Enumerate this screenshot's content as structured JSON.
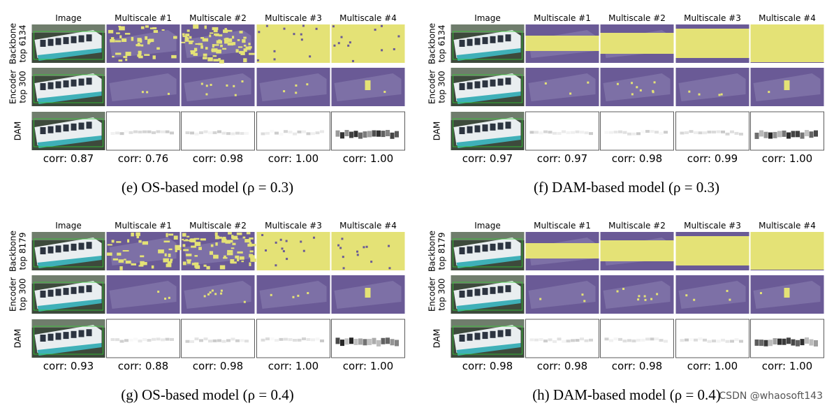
{
  "panels": [
    {
      "caption": "(e) OS-based model (ρ = 0.3)",
      "columns": [
        "Image",
        "Multiscale #1",
        "Multiscale #2",
        "Multiscale #3",
        "Multiscale #4"
      ],
      "rows": [
        {
          "label": [
            "Backbone",
            "top 6134"
          ]
        },
        {
          "label": [
            "Encoder",
            "top 300"
          ]
        },
        {
          "label": [
            "DAM"
          ]
        }
      ],
      "corr": [
        "corr: 0.87",
        "corr: 0.76",
        "corr: 0.98",
        "corr: 1.00",
        "corr: 1.00"
      ]
    },
    {
      "caption": "(f) DAM-based model (ρ = 0.3)",
      "columns": [
        "Image",
        "Multiscale #1",
        "Multiscale #2",
        "Multiscale #3",
        "Multiscale #4"
      ],
      "rows": [
        {
          "label": [
            "Backbone",
            "top 6134"
          ]
        },
        {
          "label": [
            "Encoder",
            "top 300"
          ]
        },
        {
          "label": [
            "DAM"
          ]
        }
      ],
      "corr": [
        "corr: 0.97",
        "corr: 0.97",
        "corr: 0.98",
        "corr: 0.99",
        "corr: 1.00"
      ]
    },
    {
      "caption": "(g) OS-based model (ρ = 0.4)",
      "columns": [
        "Image",
        "Multiscale #1",
        "Multiscale #2",
        "Multiscale #3",
        "Multiscale #4"
      ],
      "rows": [
        {
          "label": [
            "Backbone",
            "top 8179"
          ]
        },
        {
          "label": [
            "Encoder",
            "top 300"
          ]
        },
        {
          "label": [
            "DAM"
          ]
        }
      ],
      "corr": [
        "corr: 0.93",
        "corr: 0.88",
        "corr: 0.98",
        "corr: 1.00",
        "corr: 1.00"
      ]
    },
    {
      "caption": "(h) DAM-based model (ρ = 0.4)",
      "columns": [
        "Image",
        "Multiscale #1",
        "Multiscale #2",
        "Multiscale #3",
        "Multiscale #4"
      ],
      "rows": [
        {
          "label": [
            "Backbone",
            "top 8179"
          ]
        },
        {
          "label": [
            "Encoder",
            "top 300"
          ]
        },
        {
          "label": [
            "DAM"
          ]
        }
      ],
      "corr": [
        "corr: 0.98",
        "corr: 0.98",
        "corr: 0.98",
        "corr: 1.00",
        "corr: 1.00"
      ]
    }
  ],
  "watermark": "CSDN @whaosoft143"
}
